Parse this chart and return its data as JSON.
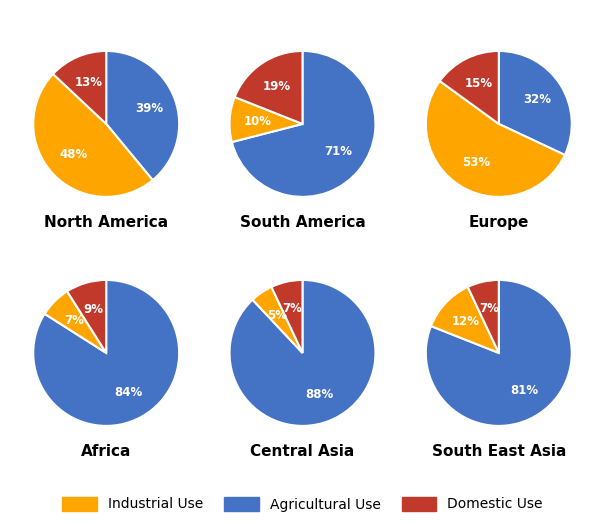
{
  "regions": [
    "North America",
    "South America",
    "Europe",
    "Africa",
    "Central Asia",
    "South East Asia"
  ],
  "data": {
    "North America": {
      "Agricultural": 39,
      "Industrial": 48,
      "Domestic": 13
    },
    "South America": {
      "Agricultural": 71,
      "Industrial": 10,
      "Domestic": 19
    },
    "Europe": {
      "Agricultural": 32,
      "Industrial": 53,
      "Domestic": 15
    },
    "Africa": {
      "Agricultural": 84,
      "Industrial": 7,
      "Domestic": 9
    },
    "Central Asia": {
      "Agricultural": 88,
      "Industrial": 5,
      "Domestic": 7
    },
    "South East Asia": {
      "Agricultural": 81,
      "Industrial": 12,
      "Domestic": 7
    }
  },
  "order": [
    "Agricultural",
    "Industrial",
    "Domestic"
  ],
  "colors": {
    "Industrial": "#FFA500",
    "Agricultural": "#4472C4",
    "Domestic": "#C0392B"
  },
  "label_color": "white",
  "label_fontsize": 8.5,
  "title_fontsize": 11,
  "background_color": "#FFFFFF",
  "legend_labels": [
    "Industrial Use",
    "Agricultural Use",
    "Domestic Use"
  ],
  "legend_keys": [
    "Industrial",
    "Agricultural",
    "Domestic"
  ],
  "start_angles": {
    "North America": 90,
    "South America": 90,
    "Europe": 90,
    "Africa": 90,
    "Central Asia": 90,
    "South East Asia": 90
  },
  "label_radius": {
    "North America": 0.62,
    "South America": 0.62,
    "Europe": 0.62,
    "Africa": 0.62,
    "Central Asia": 0.62,
    "South East Asia": 0.62
  }
}
